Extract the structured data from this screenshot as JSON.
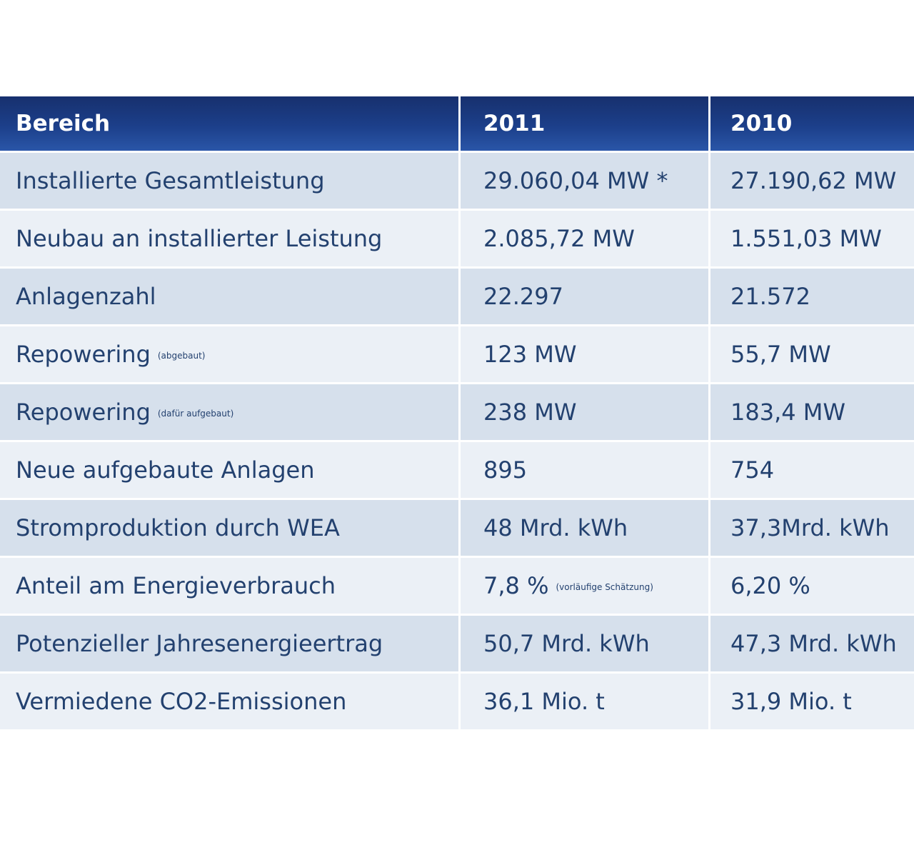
{
  "table": {
    "headers": [
      "Bereich",
      "2011",
      "2010"
    ],
    "rows": [
      {
        "label": "Installierte Gesamtleistung",
        "label_note": "",
        "v2011": "29.060,04 MW *",
        "v2011_note": "",
        "v2010": "27.190,62 MW"
      },
      {
        "label": "Neubau an installierter Leistung",
        "label_note": "",
        "v2011": "2.085,72 MW",
        "v2011_note": "",
        "v2010": "1.551,03 MW"
      },
      {
        "label": "Anlagenzahl",
        "label_note": "",
        "v2011": "22.297",
        "v2011_note": "",
        "v2010": "21.572"
      },
      {
        "label": "Repowering",
        "label_note": "(abgebaut)",
        "v2011": "123 MW",
        "v2011_note": "",
        "v2010": "55,7 MW"
      },
      {
        "label": "Repowering",
        "label_note": "(dafür aufgebaut)",
        "v2011": "238 MW",
        "v2011_note": "",
        "v2010": "183,4 MW"
      },
      {
        "label": "Neue aufgebaute Anlagen",
        "label_note": "",
        "v2011": "895",
        "v2011_note": "",
        "v2010": "754"
      },
      {
        "label": "Stromproduktion durch WEA",
        "label_note": "",
        "v2011": "48 Mrd. kWh",
        "v2011_note": "",
        "v2010": "37,3Mrd. kWh"
      },
      {
        "label": "Anteil am Energieverbrauch",
        "label_note": "",
        "v2011": "7,8 %",
        "v2011_note": "(vorläufige Schätzung)",
        "v2010": "6,20 %"
      },
      {
        "label": "Potenzieller Jahresenergieertrag",
        "label_note": "",
        "v2011": "50,7 Mrd. kWh",
        "v2011_note": "",
        "v2010": "47,3 Mrd. kWh"
      },
      {
        "label": "Vermiedene CO2-Emissionen",
        "label_note": "",
        "v2011": "36,1 Mio. t",
        "v2011_note": "",
        "v2010": "31,9 Mio. t"
      }
    ]
  },
  "colors": {
    "header_dark": "#17306e",
    "header_light": "#2a56a8",
    "row_odd": "#d6e0ec",
    "row_even": "#ebf0f6",
    "text": "#23416f"
  }
}
